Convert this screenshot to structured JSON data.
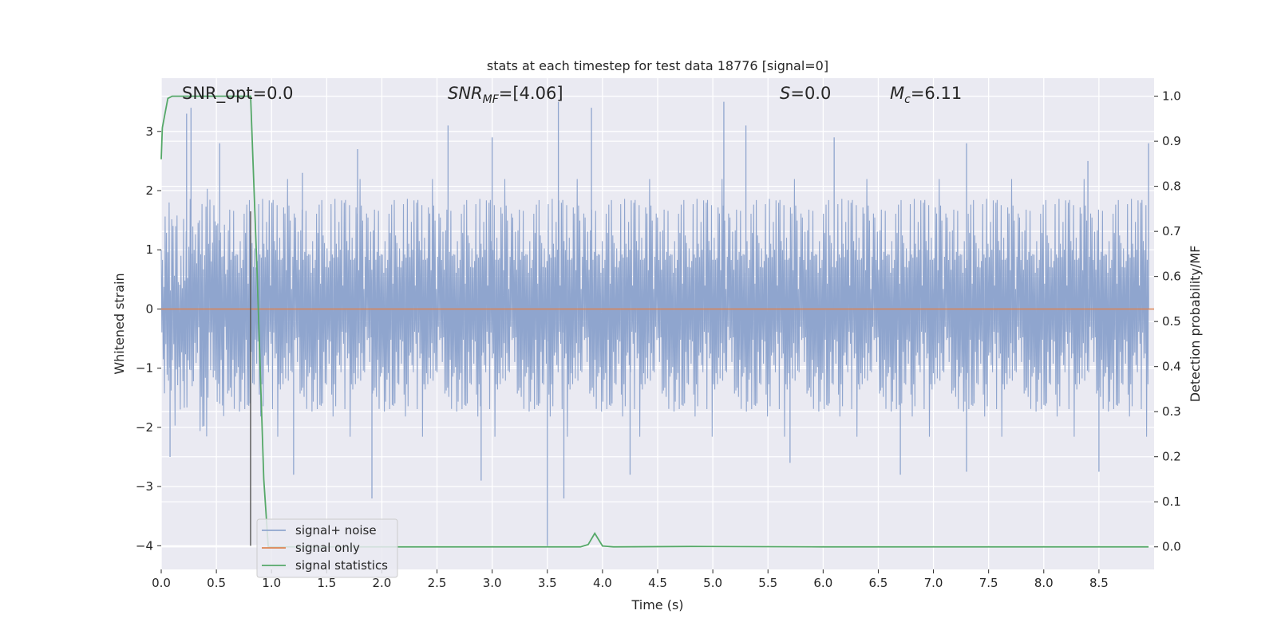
{
  "chart_data": {
    "type": "line",
    "title": "stats at each timestep for test data 18776 [signal=0]",
    "xlabel": "Time (s)",
    "ylabel": "Whitened strain",
    "ylabel_right": "Detection probability/MF",
    "xlim": [
      0,
      9
    ],
    "ylim": [
      -4.4,
      3.9
    ],
    "ylim_right": [
      -0.05,
      1.04
    ],
    "xticks": [
      "0.0",
      "0.5",
      "1.0",
      "1.5",
      "2.0",
      "2.5",
      "3.0",
      "3.5",
      "4.0",
      "4.5",
      "5.0",
      "5.5",
      "6.0",
      "6.5",
      "7.0",
      "7.5",
      "8.0",
      "8.5"
    ],
    "yticks": [
      "3",
      "2",
      "1",
      "0",
      "−1",
      "−2",
      "−3",
      "−4"
    ],
    "yticks_right": [
      "1.0",
      "0.9",
      "0.8",
      "0.7",
      "0.6",
      "0.5",
      "0.4",
      "0.3",
      "0.2",
      "0.1",
      "0.0"
    ],
    "grid": true,
    "legend_position": "lower-left",
    "annotations": {
      "snr_opt": "SNR_opt=0.0",
      "snr_mf_main": "SNR",
      "snr_mf_sub": "MF",
      "snr_mf_value": "=[4.06]",
      "s_main": "S",
      "s_value": "=0.0",
      "mc_main": "M",
      "mc_sub": "c",
      "mc_value": "=6.11"
    },
    "series": [
      {
        "name": "signal+ noise",
        "axis": "left",
        "color": "#8fa5ce",
        "description_kind": "noise",
        "envelope": {
          "typical_min": -1.7,
          "typical_max": 1.9
        },
        "peaks": [
          {
            "x": 0.23,
            "y": 3.3
          },
          {
            "x": 0.27,
            "y": 3.4
          },
          {
            "x": 0.53,
            "y": 2.8
          },
          {
            "x": 1.28,
            "y": 2.3
          },
          {
            "x": 1.78,
            "y": 2.7
          },
          {
            "x": 2.6,
            "y": 3.1
          },
          {
            "x": 3.0,
            "y": 2.9
          },
          {
            "x": 3.6,
            "y": 3.5
          },
          {
            "x": 3.9,
            "y": 3.4
          },
          {
            "x": 5.1,
            "y": 3.5
          },
          {
            "x": 5.3,
            "y": 3.1
          },
          {
            "x": 6.1,
            "y": 2.9
          },
          {
            "x": 7.3,
            "y": 2.8
          },
          {
            "x": 8.4,
            "y": 2.5
          },
          {
            "x": 8.95,
            "y": 2.8
          }
        ],
        "troughs": [
          {
            "x": 0.08,
            "y": -2.5
          },
          {
            "x": 1.2,
            "y": -2.8
          },
          {
            "x": 1.91,
            "y": -3.2
          },
          {
            "x": 2.9,
            "y": -2.9
          },
          {
            "x": 3.5,
            "y": -4.0
          },
          {
            "x": 3.65,
            "y": -3.2
          },
          {
            "x": 4.25,
            "y": -2.8
          },
          {
            "x": 5.7,
            "y": -2.6
          },
          {
            "x": 6.7,
            "y": -2.8
          },
          {
            "x": 7.3,
            "y": -2.75
          },
          {
            "x": 8.5,
            "y": -2.75
          }
        ]
      },
      {
        "name": "signal only",
        "axis": "left",
        "color": "#dd8452",
        "x": [
          0,
          9
        ],
        "y": [
          0,
          0
        ]
      },
      {
        "name": "signal statistics",
        "axis": "right",
        "color": "#55a868",
        "x": [
          0,
          0.01,
          0.06,
          0.1,
          0.2,
          0.5,
          0.79,
          0.81,
          0.87,
          0.93,
          0.97,
          1.1,
          2.0,
          3.0,
          3.8,
          3.87,
          3.93,
          4.0,
          4.1,
          4.8,
          6.0,
          7.0,
          8.0,
          8.95
        ],
        "y": [
          0.86,
          0.93,
          0.995,
          1.0,
          1.0,
          1.0,
          1.0,
          1.0,
          0.6,
          0.15,
          0.0,
          0.0,
          0.0,
          0.0,
          0.0,
          0.005,
          0.03,
          0.002,
          0.0,
          0.001,
          0.0,
          0.0,
          0.0,
          0.0
        ]
      }
    ],
    "marker_line": {
      "x": 0.81,
      "y_from": -4.0,
      "y_to": 1.65,
      "color": "#555555"
    }
  }
}
